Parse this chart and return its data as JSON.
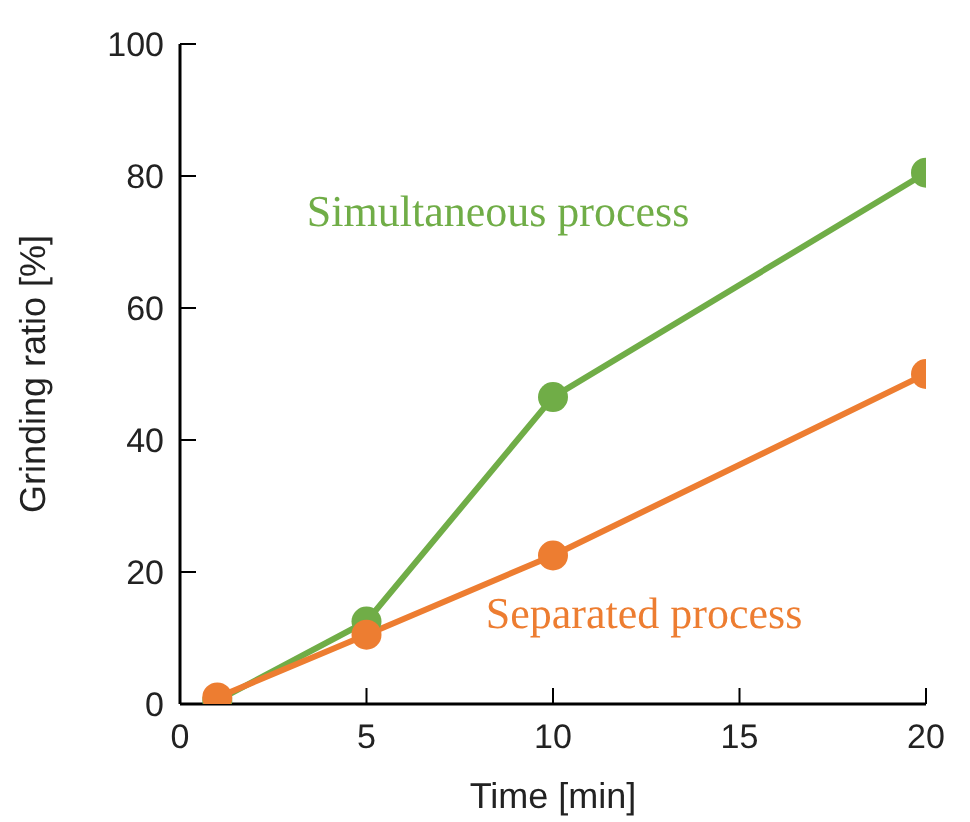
{
  "chart_data": {
    "type": "line",
    "xlabel": "Time [min]",
    "ylabel": "Grinding ratio [%]",
    "x": [
      1,
      5,
      10,
      20
    ],
    "series": [
      {
        "name": "Simultaneous process",
        "color": "#70ad47",
        "values": [
          0.5,
          12.5,
          46.5,
          80.5
        ]
      },
      {
        "name": "Separated process",
        "color": "#ed7d31",
        "values": [
          1,
          10.5,
          22.5,
          50
        ]
      }
    ],
    "xlim": [
      0,
      20
    ],
    "xticks": [
      0,
      5,
      10,
      15,
      20
    ],
    "ylim": [
      0,
      100
    ],
    "yticks": [
      0,
      20,
      40,
      60,
      80,
      100
    ],
    "grid": false,
    "legend": false,
    "marker": "circle",
    "line_style": "solid"
  }
}
